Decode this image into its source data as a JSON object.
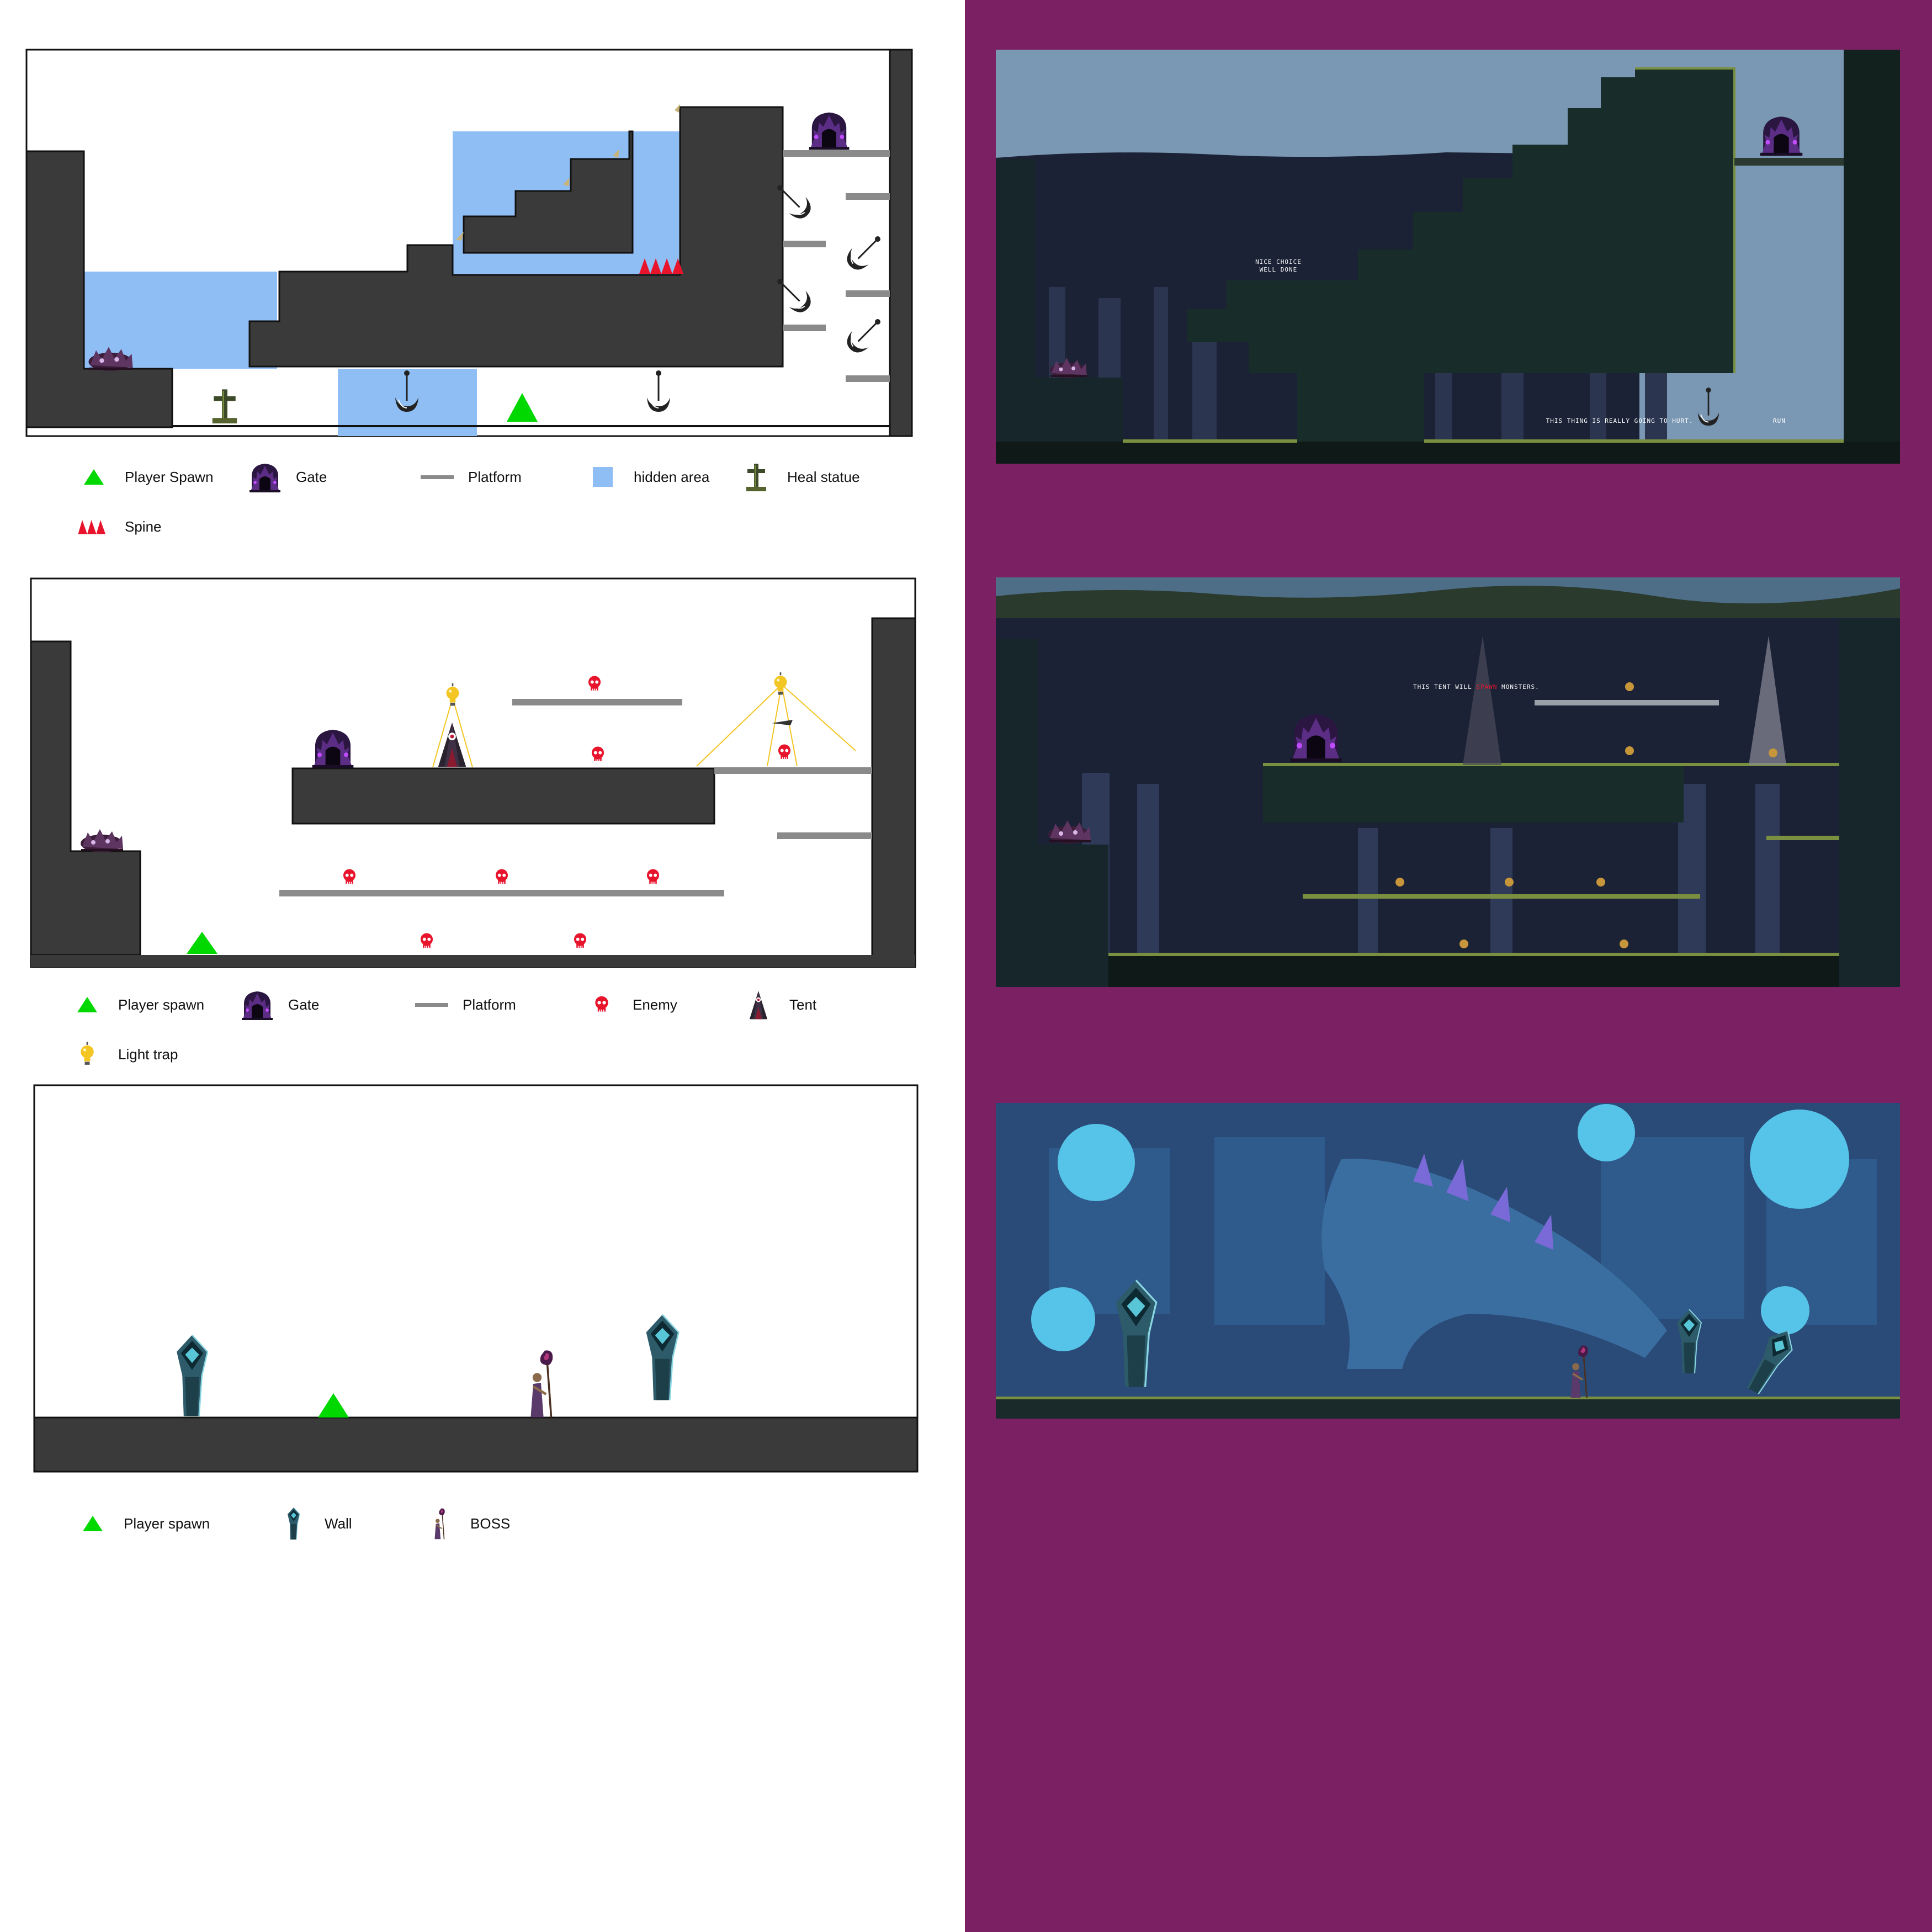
{
  "colors": {
    "background_left": "#ffffff",
    "background_right": "#7b2163",
    "ground": "#3a3a3a",
    "hidden_area": "#8fbef5",
    "platform": "#8a8a8a",
    "spine": "#e8142c",
    "enemy": "#e8142c",
    "spawn": "#00d800",
    "light_trap": "#f3c623"
  },
  "level1": {
    "legend": [
      {
        "icon": "spawn-triangle-icon",
        "label": "Player Spawn"
      },
      {
        "icon": "gate-icon",
        "label": "Gate"
      },
      {
        "icon": "platform-icon",
        "label": "Platform"
      },
      {
        "icon": "hidden-area-icon",
        "label": "hidden area"
      },
      {
        "icon": "heal-statue-icon",
        "label": "Heal statue"
      },
      {
        "icon": "spine-icon",
        "label": "Spine"
      }
    ],
    "screenshot_texts": [
      "NICE CHOICE",
      "WELL DONE",
      "THIS THING IS REALLY GOING TO HURT.",
      "RUN"
    ]
  },
  "level2": {
    "legend": [
      {
        "icon": "spawn-triangle-icon",
        "label": "Player spawn"
      },
      {
        "icon": "gate-icon",
        "label": "Gate"
      },
      {
        "icon": "platform-icon",
        "label": "Platform"
      },
      {
        "icon": "enemy-icon",
        "label": "Enemy"
      },
      {
        "icon": "tent-icon",
        "label": "Tent"
      },
      {
        "icon": "light-trap-icon",
        "label": "Light trap"
      }
    ],
    "screenshot_texts": [
      "THIS TENT WILL",
      "SPAWN",
      "MONSTERS."
    ]
  },
  "level3": {
    "legend": [
      {
        "icon": "spawn-triangle-icon",
        "label": "Player spawn"
      },
      {
        "icon": "wall-icon",
        "label": "Wall"
      },
      {
        "icon": "boss-icon",
        "label": "BOSS"
      }
    ]
  }
}
